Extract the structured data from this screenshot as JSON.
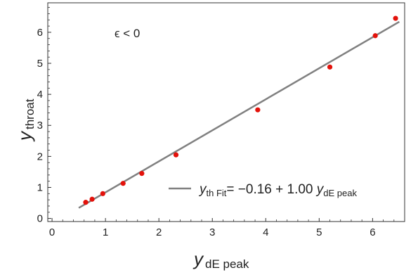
{
  "chart_data": {
    "type": "scatter",
    "xlim": [
      -0.08,
      6.6
    ],
    "ylim": [
      -0.1,
      6.95
    ],
    "x_ticks": [
      0,
      1,
      2,
      3,
      4,
      5,
      6
    ],
    "y_ticks": [
      0,
      1,
      2,
      3,
      4,
      5,
      6
    ],
    "x_tick_labels": [
      "0",
      "1",
      "2",
      "3",
      "4",
      "5",
      "6"
    ],
    "y_tick_labels": [
      "0",
      "1",
      "2",
      "3",
      "4",
      "5",
      "6"
    ],
    "xlabel": {
      "main": "y",
      "sub": "dE peak"
    },
    "ylabel": {
      "main": "y",
      "sub": "throat"
    },
    "annotation": "ϵ < 0",
    "grid": false,
    "series": [
      {
        "kind": "points",
        "color": "#e3120b",
        "x": [
          0.63,
          0.75,
          0.95,
          1.33,
          1.68,
          2.32,
          3.85,
          5.2,
          6.05,
          6.43
        ],
        "y": [
          0.52,
          0.62,
          0.8,
          1.13,
          1.45,
          2.05,
          3.5,
          4.88,
          5.89,
          6.45
        ]
      },
      {
        "kind": "line",
        "color": "#808080",
        "intercept": -0.16,
        "slope": 1.0,
        "x_range": [
          0.5,
          6.5
        ]
      }
    ],
    "legend": {
      "placement": "bottom-right",
      "prefix": "y",
      "prefix_sub": "th Fit",
      "equation": "= −0.16 + 1.00 ",
      "suffix": "y",
      "suffix_sub": "dE peak"
    }
  }
}
